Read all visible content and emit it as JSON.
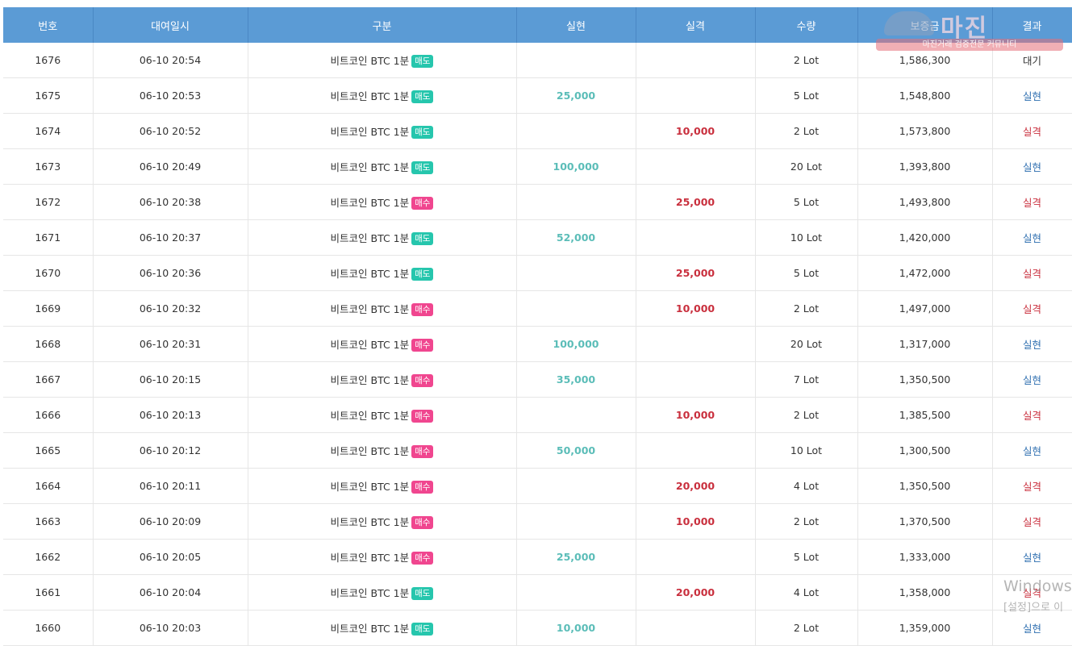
{
  "table": {
    "headers": [
      "번호",
      "대여일시",
      "구분",
      "실현",
      "실격",
      "수량",
      "보증금",
      "결과"
    ],
    "rows": [
      {
        "no": "1676",
        "time": "06-10 20:54",
        "item": "비트코인 BTC 1분",
        "type": "매도",
        "realized": "",
        "failed": "",
        "qty": "2 Lot",
        "deposit": "1,586,300",
        "result": "대기"
      },
      {
        "no": "1675",
        "time": "06-10 20:53",
        "item": "비트코인 BTC 1분",
        "type": "매도",
        "realized": "25,000",
        "failed": "",
        "qty": "5 Lot",
        "deposit": "1,548,800",
        "result": "실현"
      },
      {
        "no": "1674",
        "time": "06-10 20:52",
        "item": "비트코인 BTC 1분",
        "type": "매도",
        "realized": "",
        "failed": "10,000",
        "qty": "2 Lot",
        "deposit": "1,573,800",
        "result": "실격"
      },
      {
        "no": "1673",
        "time": "06-10 20:49",
        "item": "비트코인 BTC 1분",
        "type": "매도",
        "realized": "100,000",
        "failed": "",
        "qty": "20 Lot",
        "deposit": "1,393,800",
        "result": "실현"
      },
      {
        "no": "1672",
        "time": "06-10 20:38",
        "item": "비트코인 BTC 1분",
        "type": "매수",
        "realized": "",
        "failed": "25,000",
        "qty": "5 Lot",
        "deposit": "1,493,800",
        "result": "실격"
      },
      {
        "no": "1671",
        "time": "06-10 20:37",
        "item": "비트코인 BTC 1분",
        "type": "매도",
        "realized": "52,000",
        "failed": "",
        "qty": "10 Lot",
        "deposit": "1,420,000",
        "result": "실현"
      },
      {
        "no": "1670",
        "time": "06-10 20:36",
        "item": "비트코인 BTC 1분",
        "type": "매도",
        "realized": "",
        "failed": "25,000",
        "qty": "5 Lot",
        "deposit": "1,472,000",
        "result": "실격"
      },
      {
        "no": "1669",
        "time": "06-10 20:32",
        "item": "비트코인 BTC 1분",
        "type": "매수",
        "realized": "",
        "failed": "10,000",
        "qty": "2 Lot",
        "deposit": "1,497,000",
        "result": "실격"
      },
      {
        "no": "1668",
        "time": "06-10 20:31",
        "item": "비트코인 BTC 1분",
        "type": "매수",
        "realized": "100,000",
        "failed": "",
        "qty": "20 Lot",
        "deposit": "1,317,000",
        "result": "실현"
      },
      {
        "no": "1667",
        "time": "06-10 20:15",
        "item": "비트코인 BTC 1분",
        "type": "매수",
        "realized": "35,000",
        "failed": "",
        "qty": "7 Lot",
        "deposit": "1,350,500",
        "result": "실현"
      },
      {
        "no": "1666",
        "time": "06-10 20:13",
        "item": "비트코인 BTC 1분",
        "type": "매수",
        "realized": "",
        "failed": "10,000",
        "qty": "2 Lot",
        "deposit": "1,385,500",
        "result": "실격"
      },
      {
        "no": "1665",
        "time": "06-10 20:12",
        "item": "비트코인 BTC 1분",
        "type": "매수",
        "realized": "50,000",
        "failed": "",
        "qty": "10 Lot",
        "deposit": "1,300,500",
        "result": "실현"
      },
      {
        "no": "1664",
        "time": "06-10 20:11",
        "item": "비트코인 BTC 1분",
        "type": "매수",
        "realized": "",
        "failed": "20,000",
        "qty": "4 Lot",
        "deposit": "1,350,500",
        "result": "실격"
      },
      {
        "no": "1663",
        "time": "06-10 20:09",
        "item": "비트코인 BTC 1분",
        "type": "매수",
        "realized": "",
        "failed": "10,000",
        "qty": "2 Lot",
        "deposit": "1,370,500",
        "result": "실격"
      },
      {
        "no": "1662",
        "time": "06-10 20:05",
        "item": "비트코인 BTC 1분",
        "type": "매수",
        "realized": "25,000",
        "failed": "",
        "qty": "5 Lot",
        "deposit": "1,333,000",
        "result": "실현"
      },
      {
        "no": "1661",
        "time": "06-10 20:04",
        "item": "비트코인 BTC 1분",
        "type": "매도",
        "realized": "",
        "failed": "20,000",
        "qty": "4 Lot",
        "deposit": "1,358,000",
        "result": "실격"
      },
      {
        "no": "1660",
        "time": "06-10 20:03",
        "item": "비트코인 BTC 1분",
        "type": "매도",
        "realized": "10,000",
        "failed": "",
        "qty": "2 Lot",
        "deposit": "1,359,000",
        "result": "실현"
      }
    ]
  },
  "watermark": {
    "logo_text": "마진",
    "logo_subtitle": "마진거래 검증전문 커뮤니티"
  },
  "windows_activation": {
    "line1": "Windows",
    "line2": "[설정]으로 이"
  },
  "colors": {
    "header_bg": "#5b9bd5",
    "realized": "#5bbdb8",
    "failed": "#c9303e",
    "result_win": "#2f6fb0",
    "badge_sell": "#26c6ad",
    "badge_buy": "#f0468f"
  }
}
